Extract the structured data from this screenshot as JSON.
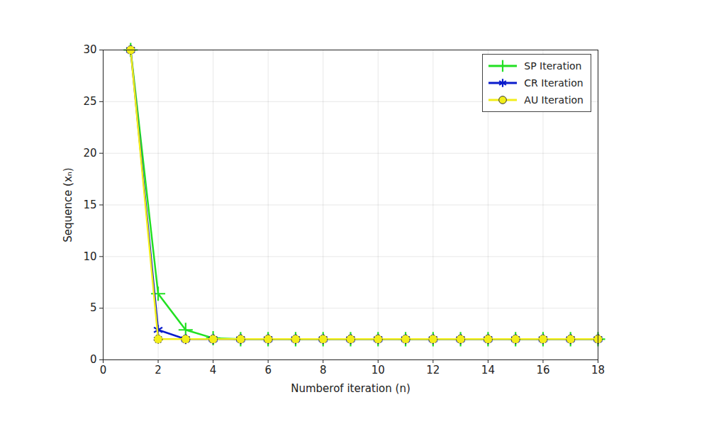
{
  "chart_data": {
    "type": "line",
    "xlabel": "Numberof iteration (n)",
    "ylabel": "Sequence (xₙ)",
    "x": [
      1,
      2,
      3,
      4,
      5,
      6,
      7,
      8,
      9,
      10,
      11,
      12,
      13,
      14,
      15,
      16,
      17,
      18
    ],
    "series": [
      {
        "name": "SP Iteration",
        "color": "#22e022",
        "marker": "plus",
        "line_style": "solid",
        "values": [
          30,
          6.4,
          2.9,
          2.1,
          2.0,
          2.0,
          2.0,
          2.0,
          2.0,
          2.0,
          2.0,
          2.0,
          2.0,
          2.0,
          2.0,
          2.0,
          2.0,
          2.0
        ]
      },
      {
        "name": "CR Iteration",
        "color": "#0a1ccc",
        "marker": "asterisk",
        "line_style": "solid",
        "values": [
          30,
          2.9,
          2.0,
          2.0,
          2.0,
          2.0,
          2.0,
          2.0,
          2.0,
          2.0,
          2.0,
          2.0,
          2.0,
          2.0,
          2.0,
          2.0,
          2.0,
          2.0
        ]
      },
      {
        "name": "AU Iteration",
        "color": "#f2ee1a",
        "marker": "circle",
        "line_style": "solid",
        "values": [
          30,
          2.0,
          2.0,
          2.0,
          2.0,
          2.0,
          2.0,
          2.0,
          2.0,
          2.0,
          2.0,
          2.0,
          2.0,
          2.0,
          2.0,
          2.0,
          2.0,
          2.0
        ]
      }
    ],
    "xlim": [
      0,
      18
    ],
    "xticks": [
      0,
      2,
      4,
      6,
      8,
      10,
      12,
      14,
      16,
      18
    ],
    "ylim": [
      0,
      30
    ],
    "yticks": [
      0,
      5,
      10,
      15,
      20,
      25,
      30
    ],
    "grid": true,
    "legend": "upper right"
  }
}
